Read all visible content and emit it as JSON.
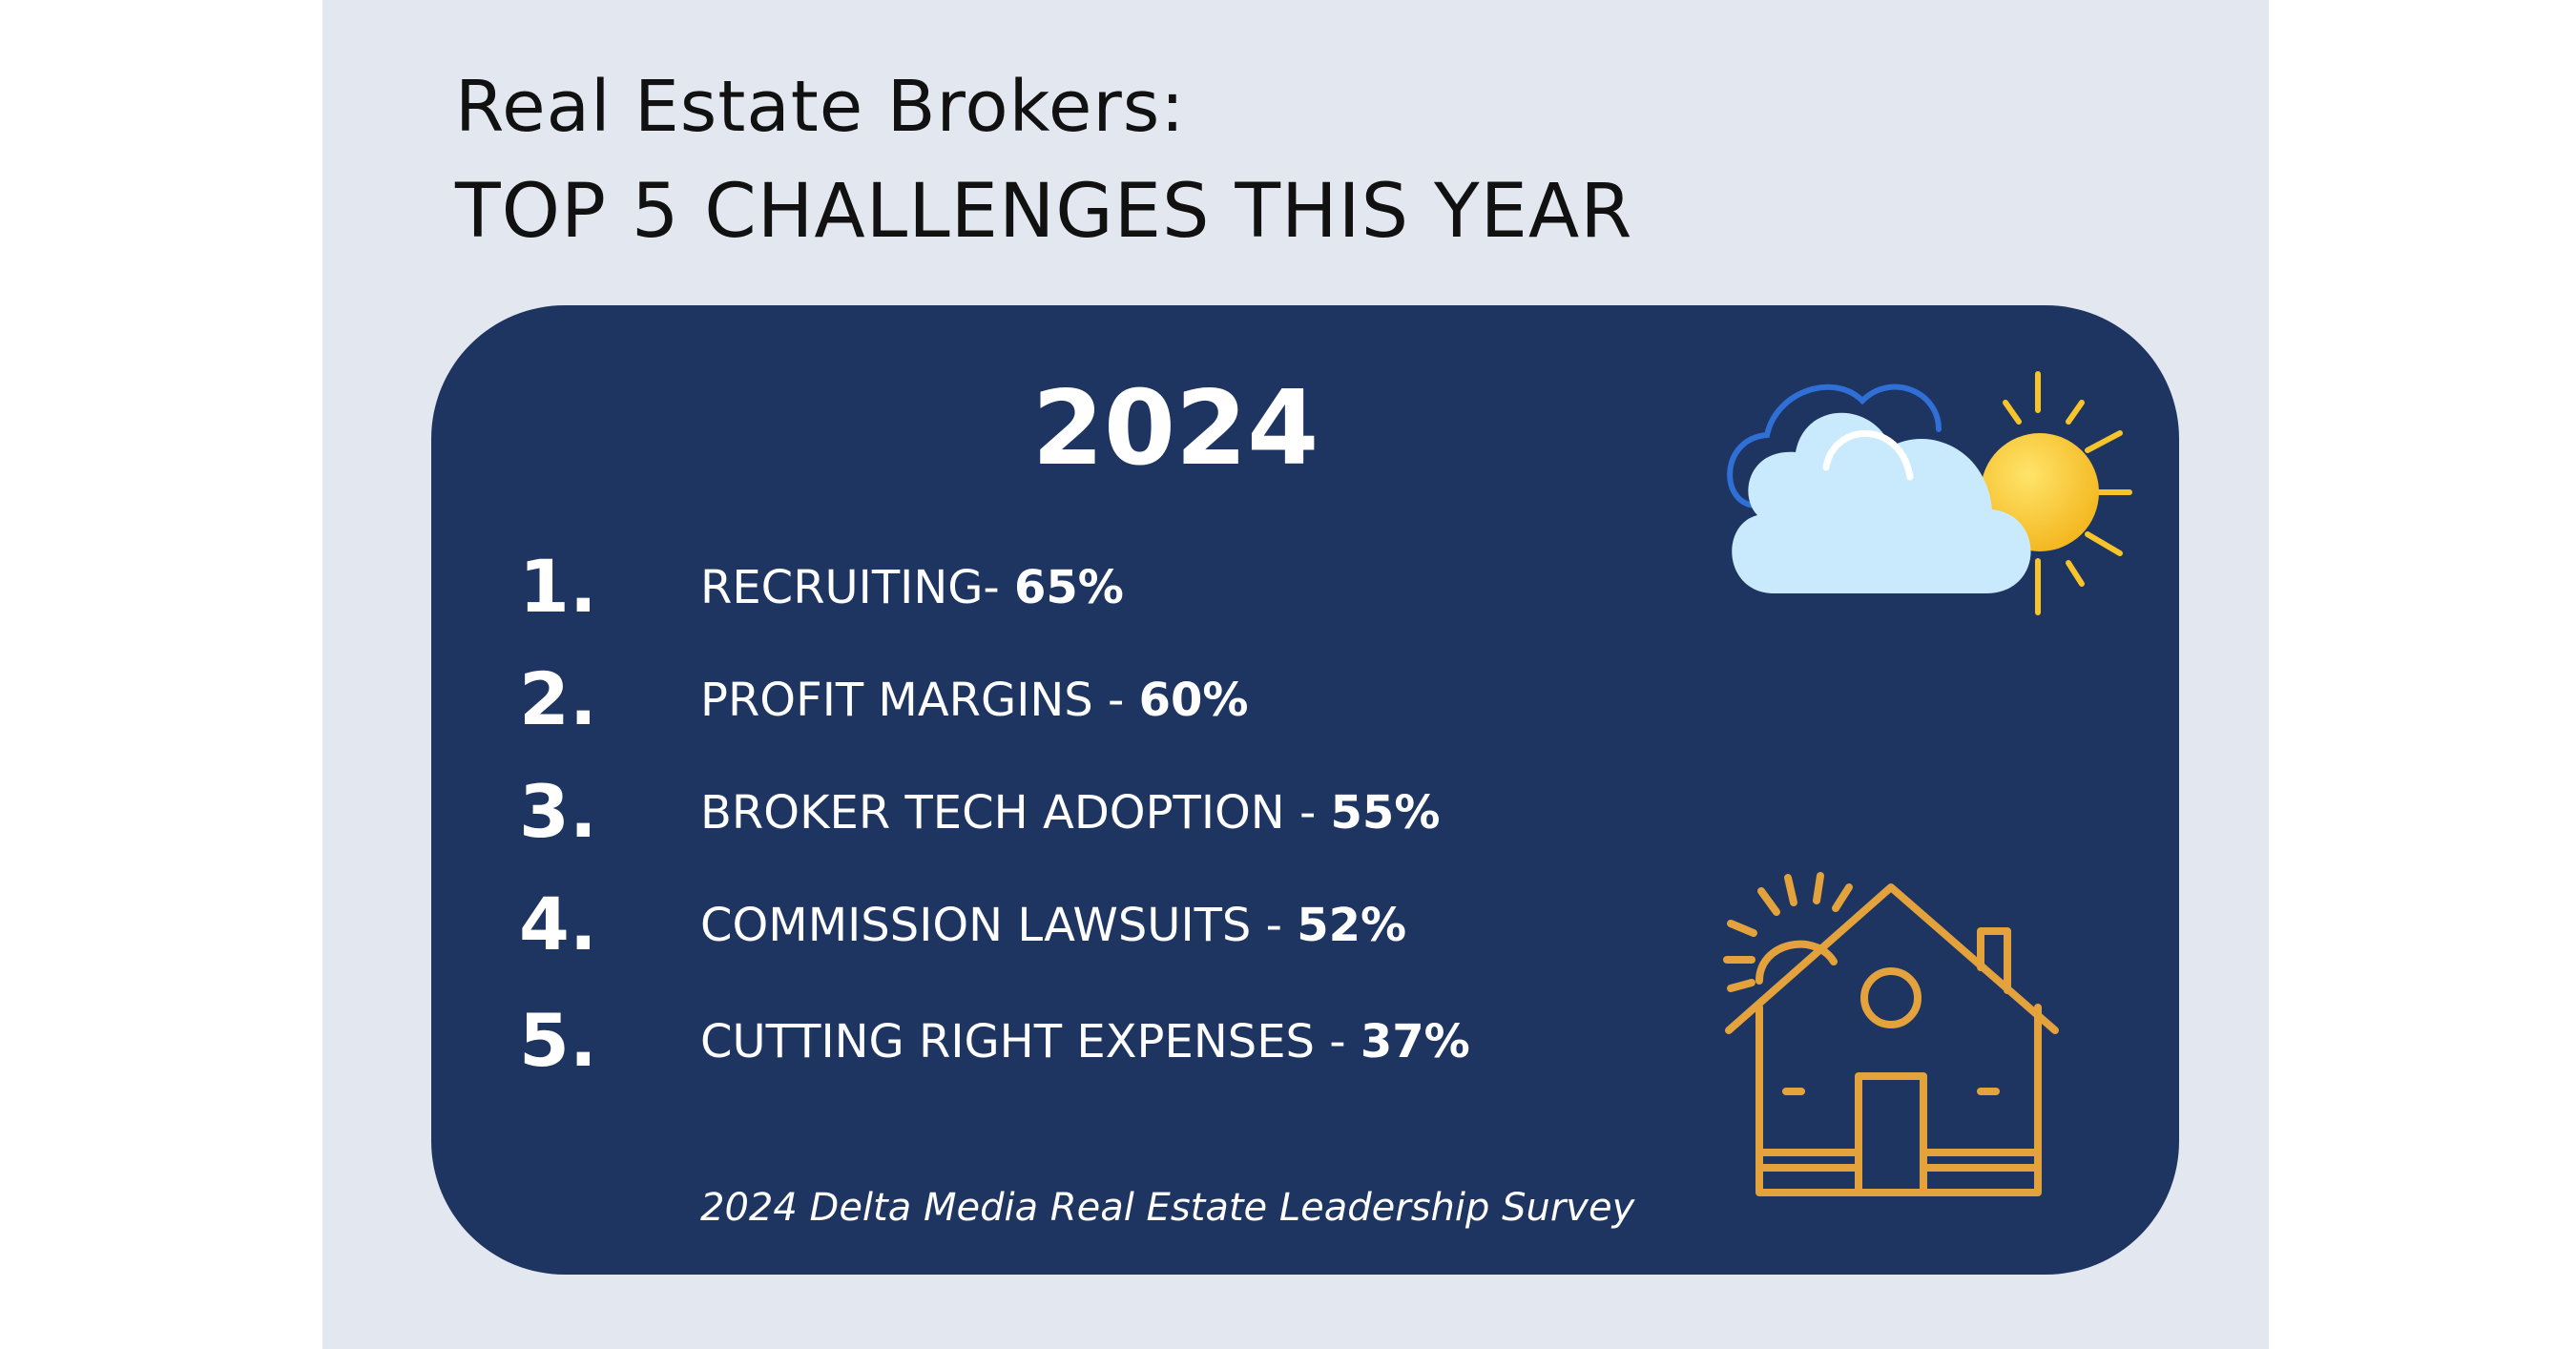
{
  "header": {
    "title_line1": "Real Estate Brokers:",
    "title_line2": "TOP 5 CHALLENGES THIS YEAR"
  },
  "card": {
    "year": "2024",
    "items": [
      {
        "number": "1.",
        "label": "RECRUITING-",
        "percent": "65%"
      },
      {
        "number": "2.",
        "label": "PROFIT MARGINS -",
        "percent": "60%"
      },
      {
        "number": "3.",
        "label": "BROKER TECH ADOPTION -",
        "percent": "55%"
      },
      {
        "number": "4.",
        "label": "COMMISSION LAWSUITS -",
        "percent": "52%"
      },
      {
        "number": "5.",
        "label": "CUTTING RIGHT EXPENSES -",
        "percent": "37%"
      }
    ],
    "source": "2024 Delta Media Real Estate Leadership Survey"
  },
  "icons": {
    "weather": "cloud-sun-icon",
    "house": "house-icon"
  },
  "colors": {
    "card_background": "#1e3461",
    "page_panel": "#e3e8f0",
    "house_stroke": "#e3a23c",
    "sun": "#f7c52a",
    "cloud": "#c9eafc",
    "cloud_outline": "#2f6fd6"
  }
}
